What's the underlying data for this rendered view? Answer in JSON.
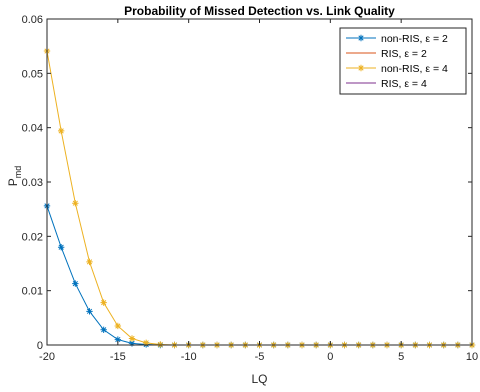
{
  "chart_data": {
    "type": "line",
    "title": "Probability of Missed Detection vs. Link Quality",
    "xlabel": "LQ",
    "ylabel": {
      "main": "P",
      "sub": "md"
    },
    "xlim": [
      -20,
      10
    ],
    "ylim": [
      0,
      0.06
    ],
    "xticks": [
      -20,
      -15,
      -10,
      -5,
      0,
      5,
      10
    ],
    "yticks": [
      0,
      0.01,
      0.02,
      0.03,
      0.04,
      0.05,
      0.06
    ],
    "xtick_labels": [
      "-20",
      "-15",
      "-10",
      "-5",
      "0",
      "5",
      "10"
    ],
    "ytick_labels": [
      "0",
      "0.01",
      "0.02",
      "0.03",
      "0.04",
      "0.05",
      "0.06"
    ],
    "grid": false,
    "legend_position": "top-right",
    "x": [
      -20,
      -19,
      -18,
      -17,
      -16,
      -15,
      -14,
      -13,
      -12,
      -11,
      -10,
      -9,
      -8,
      -7,
      -6,
      -5,
      -4,
      -3,
      -2,
      -1,
      0,
      1,
      2,
      3,
      4,
      5,
      6,
      7,
      8,
      9,
      10
    ],
    "series": [
      {
        "name": "non-RIS, ε = 2",
        "color": "#0072BD",
        "marker": "asterisk",
        "values": [
          0.0256,
          0.018,
          0.0113,
          0.0062,
          0.0028,
          0.001,
          0.0003,
          0.0001,
          0,
          0,
          0,
          0,
          0,
          0,
          0,
          0,
          0,
          0,
          0,
          0,
          0,
          0,
          0,
          0,
          0,
          0,
          0,
          0,
          0,
          0,
          0
        ]
      },
      {
        "name": "RIS, ε = 2",
        "color": "#D95319",
        "marker": "none",
        "values": [
          0,
          0,
          0,
          0,
          0,
          0,
          0,
          0,
          0,
          0,
          0,
          0,
          0,
          0,
          0,
          0,
          0,
          0,
          0,
          0,
          0,
          0,
          0,
          0,
          0,
          0,
          0,
          0,
          0,
          0,
          0
        ]
      },
      {
        "name": "non-RIS, ε = 4",
        "color": "#EDB120",
        "marker": "asterisk",
        "values": [
          0.0541,
          0.0394,
          0.0261,
          0.0153,
          0.0078,
          0.0035,
          0.0012,
          0.0004,
          0.0001,
          0,
          0,
          0,
          0,
          0,
          0,
          0,
          0,
          0,
          0,
          0,
          0,
          0,
          0,
          0,
          0,
          0,
          0,
          0,
          0,
          0,
          0
        ]
      },
      {
        "name": "RIS, ε = 4",
        "color": "#7E2F8E",
        "marker": "none",
        "values": [
          0,
          0,
          0,
          0,
          0,
          0,
          0,
          0,
          0,
          0,
          0,
          0,
          0,
          0,
          0,
          0,
          0,
          0,
          0,
          0,
          0,
          0,
          0,
          0,
          0,
          0,
          0,
          0,
          0,
          0,
          0
        ]
      }
    ]
  }
}
